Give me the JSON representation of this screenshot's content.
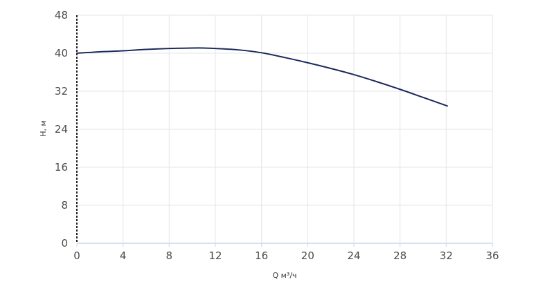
{
  "chart_data": {
    "type": "line",
    "xlabel": "Q м³/ч",
    "ylabel": "H, м",
    "xlim": [
      0,
      36
    ],
    "ylim": [
      0,
      48
    ],
    "x_ticks": [
      0,
      4,
      8,
      12,
      16,
      20,
      24,
      28,
      32,
      36
    ],
    "y_ticks": [
      0,
      8,
      16,
      24,
      32,
      40,
      48
    ],
    "x_tick_labels": [
      "0",
      "4",
      "8",
      "12",
      "16",
      "20",
      "24",
      "28",
      "32",
      "36"
    ],
    "y_tick_labels": [
      "0",
      "8",
      "16",
      "24",
      "32",
      "40",
      "48"
    ],
    "grid": true,
    "series": [
      {
        "color": "#1b2a5c",
        "x": [
          0,
          2,
          4,
          6,
          8,
          10,
          11,
          12,
          14,
          16,
          18,
          20,
          22,
          24,
          26,
          28,
          30,
          32.1
        ],
        "y": [
          40.0,
          40.3,
          40.5,
          40.8,
          41.0,
          41.1,
          41.1,
          41.0,
          40.7,
          40.1,
          39.1,
          38.0,
          36.8,
          35.5,
          34.0,
          32.4,
          30.7,
          28.9
        ]
      }
    ]
  }
}
